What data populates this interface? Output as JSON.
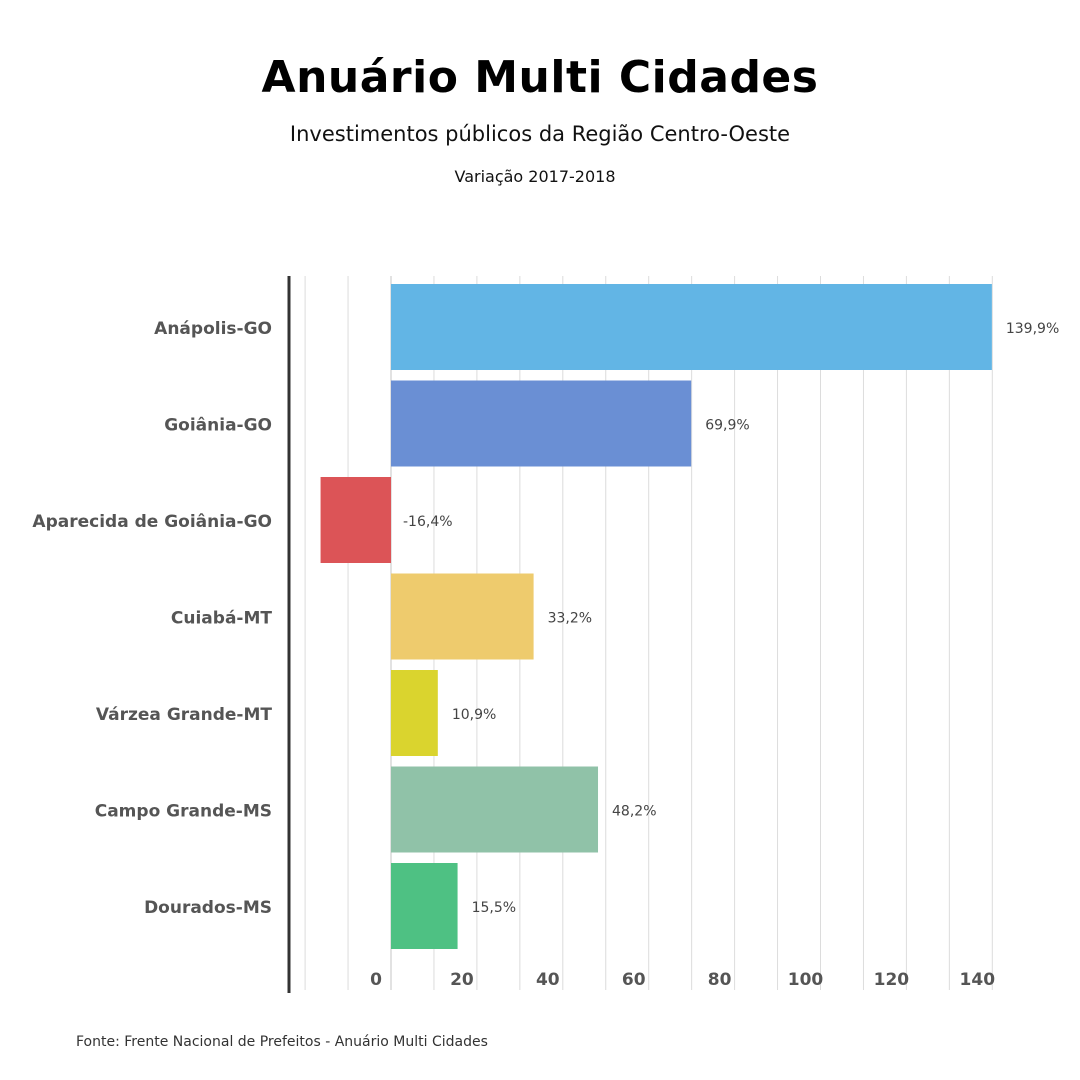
{
  "chart_data": {
    "type": "bar",
    "orientation": "horizontal",
    "title": "Anuário Multi Cidades",
    "subtitle": "Investimentos públicos da Região Centro-Oeste",
    "period": "Variação 2017-2018",
    "categories": [
      "Anápolis-GO",
      "Goiânia-GO",
      "Aparecida de Goiânia-GO",
      "Cuiabá-MT",
      "Várzea Grande-MT",
      "Campo Grande-MS",
      "Dourados-MS"
    ],
    "values": [
      139.9,
      69.9,
      -16.4,
      33.2,
      10.9,
      48.2,
      15.5
    ],
    "data_labels": [
      "139,9%",
      "69,9%",
      "-16,4%",
      "33,2%",
      "10,9%",
      "48,2%",
      "15,5%"
    ],
    "colors": [
      "#62b5e5",
      "#6a8fd4",
      "#dc5457",
      "#eecb6d",
      "#dad42e",
      "#90c2a8",
      "#4ec183"
    ],
    "x_ticks": [
      0,
      20,
      40,
      60,
      80,
      100,
      120,
      140
    ],
    "xlim": [
      -20,
      140
    ],
    "grid": true,
    "xlabel": "",
    "ylabel": ""
  },
  "source": "Fonte: Frente Nacional de Prefeitos - Anuário Multi Cidades"
}
